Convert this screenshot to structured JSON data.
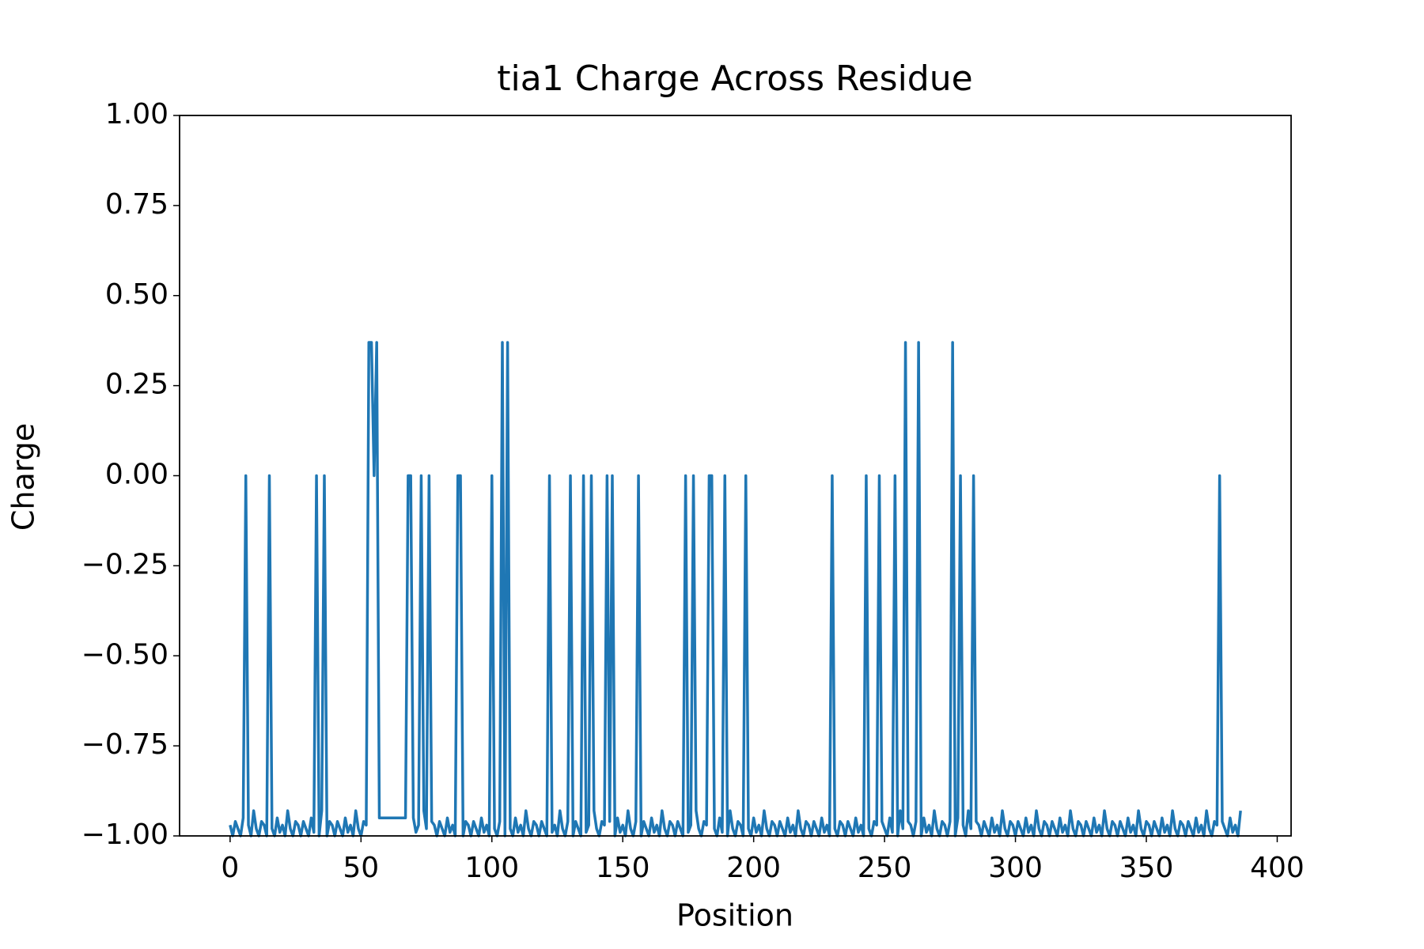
{
  "chart_data": {
    "type": "line",
    "title": "tia1 Charge Across Residue",
    "x_label": "Position",
    "y_label": "Charge",
    "xlim": [
      -19.3,
      405.3
    ],
    "xticks": [
      0,
      50,
      100,
      150,
      200,
      250,
      300,
      350,
      400
    ],
    "ylim": [
      -1,
      1
    ],
    "yticks": [
      {
        "value": -1,
        "label": "−1.00"
      },
      {
        "value": -0.75,
        "label": "−0.75"
      },
      {
        "value": -0.5,
        "label": "−0.50"
      },
      {
        "value": -0.25,
        "label": "−0.25"
      },
      {
        "value": 0,
        "label": "0.00"
      },
      {
        "value": 0.25,
        "label": "0.25"
      },
      {
        "value": 0.5,
        "label": "0.50"
      },
      {
        "value": 0.75,
        "label": "0.75"
      },
      {
        "value": 1,
        "label": "1.00"
      }
    ],
    "grid": false,
    "color": "#1f77b4",
    "x": [
      0,
      1,
      2,
      3,
      4,
      5,
      6,
      7,
      8,
      9,
      10,
      11,
      12,
      13,
      14,
      15,
      16,
      17,
      18,
      19,
      20,
      21,
      22,
      23,
      24,
      25,
      26,
      27,
      28,
      29,
      30,
      31,
      32,
      33,
      34,
      35,
      36,
      37,
      38,
      39,
      40,
      41,
      42,
      43,
      44,
      45,
      46,
      47,
      48,
      49,
      50,
      51,
      52,
      53,
      54,
      55,
      56,
      57,
      58,
      59,
      60,
      61,
      62,
      63,
      64,
      65,
      66,
      67,
      68,
      69,
      70,
      71,
      72,
      73,
      74,
      75,
      76,
      77,
      78,
      79,
      80,
      81,
      82,
      83,
      84,
      85,
      86,
      87,
      88,
      89,
      90,
      91,
      92,
      93,
      94,
      95,
      96,
      97,
      98,
      99,
      100,
      101,
      102,
      103,
      104,
      105,
      106,
      107,
      108,
      109,
      110,
      111,
      112,
      113,
      114,
      115,
      116,
      117,
      118,
      119,
      120,
      121,
      122,
      123,
      124,
      125,
      126,
      127,
      128,
      129,
      130,
      131,
      132,
      133,
      134,
      135,
      136,
      137,
      138,
      139,
      140,
      141,
      142,
      143,
      144,
      145,
      146,
      147,
      148,
      149,
      150,
      151,
      152,
      153,
      154,
      155,
      156,
      157,
      158,
      159,
      160,
      161,
      162,
      163,
      164,
      165,
      166,
      167,
      168,
      169,
      170,
      171,
      172,
      173,
      174,
      175,
      176,
      177,
      178,
      179,
      180,
      181,
      182,
      183,
      184,
      185,
      186,
      187,
      188,
      189,
      190,
      191,
      192,
      193,
      194,
      195,
      196,
      197,
      198,
      199,
      200,
      201,
      202,
      203,
      204,
      205,
      206,
      207,
      208,
      209,
      210,
      211,
      212,
      213,
      214,
      215,
      216,
      217,
      218,
      219,
      220,
      221,
      222,
      223,
      224,
      225,
      226,
      227,
      228,
      229,
      230,
      231,
      232,
      233,
      234,
      235,
      236,
      237,
      238,
      239,
      240,
      241,
      242,
      243,
      244,
      245,
      246,
      247,
      248,
      249,
      250,
      251,
      252,
      253,
      254,
      255,
      256,
      257,
      258,
      259,
      260,
      261,
      262,
      263,
      264,
      265,
      266,
      267,
      268,
      269,
      270,
      271,
      272,
      273,
      274,
      275,
      276,
      277,
      278,
      279,
      280,
      281,
      282,
      283,
      284,
      285,
      286,
      287,
      288,
      289,
      290,
      291,
      292,
      293,
      294,
      295,
      296,
      297,
      298,
      299,
      300,
      301,
      302,
      303,
      304,
      305,
      306,
      307,
      308,
      309,
      310,
      311,
      312,
      313,
      314,
      315,
      316,
      317,
      318,
      319,
      320,
      321,
      322,
      323,
      324,
      325,
      326,
      327,
      328,
      329,
      330,
      331,
      332,
      333,
      334,
      335,
      336,
      337,
      338,
      339,
      340,
      341,
      342,
      343,
      344,
      345,
      346,
      347,
      348,
      349,
      350,
      351,
      352,
      353,
      354,
      355,
      356,
      357,
      358,
      359,
      360,
      361,
      362,
      363,
      364,
      365,
      366,
      367,
      368,
      369,
      370,
      371,
      372,
      373,
      374,
      375,
      376,
      377,
      378,
      379,
      380,
      381,
      382,
      383,
      384,
      385,
      386
    ],
    "values": [
      -0.97,
      -1,
      -0.96,
      -0.98,
      -1,
      -0.95,
      0,
      -0.97,
      -1,
      -0.93,
      -0.98,
      -1,
      -0.96,
      -0.97,
      -1,
      0,
      -0.98,
      -1,
      -0.95,
      -0.99,
      -0.97,
      -1,
      -0.93,
      -0.98,
      -1,
      -0.96,
      -0.97,
      -1,
      -0.96,
      -0.98,
      -1,
      -0.95,
      -0.99,
      0,
      -1,
      -0.93,
      0,
      -1,
      -0.96,
      -0.97,
      -1,
      -0.96,
      -0.98,
      -1,
      -0.95,
      -0.99,
      -0.97,
      -1,
      -0.93,
      -0.98,
      -1,
      -0.96,
      -0.97,
      0.37,
      0.37,
      0,
      0.37,
      -0.95,
      -0.95,
      -0.95,
      -0.95,
      -0.95,
      -0.95,
      -0.95,
      -0.95,
      -0.95,
      -0.95,
      -0.95,
      0,
      0,
      -0.95,
      -0.99,
      -0.97,
      0,
      -0.93,
      -0.98,
      0,
      -0.96,
      -0.97,
      -1,
      -0.96,
      -0.98,
      -1,
      -0.95,
      -0.99,
      -0.97,
      -1,
      0,
      0,
      -1,
      -0.96,
      -0.97,
      -1,
      -0.96,
      -0.98,
      -1,
      -0.95,
      -0.99,
      -0.97,
      -1,
      0,
      -0.98,
      -1,
      -0.96,
      0.37,
      -1,
      0.37,
      -0.98,
      -1,
      -0.95,
      -0.99,
      -0.97,
      -1,
      -0.93,
      -0.98,
      -1,
      -0.96,
      -0.97,
      -1,
      -0.96,
      -0.98,
      -1,
      0,
      -0.99,
      -0.97,
      -1,
      -0.93,
      -0.98,
      -1,
      -0.96,
      0,
      -1,
      -0.96,
      -0.98,
      -1,
      0,
      -0.99,
      -0.97,
      0,
      -0.93,
      -0.98,
      -1,
      -0.96,
      -0.97,
      0,
      -0.96,
      0,
      -1,
      -0.95,
      -0.99,
      -0.97,
      -1,
      -0.93,
      -0.98,
      -1,
      -0.96,
      0,
      -1,
      -0.96,
      -0.98,
      -1,
      -0.95,
      -0.99,
      -0.97,
      -1,
      -0.93,
      -0.98,
      -1,
      -0.96,
      -0.97,
      -1,
      -0.96,
      -0.98,
      -1,
      0,
      -0.99,
      -0.97,
      0,
      -0.93,
      -0.98,
      -1,
      -0.96,
      -0.97,
      0,
      0,
      -0.98,
      -1,
      -0.95,
      -0.99,
      0,
      -1,
      -0.93,
      -0.98,
      -1,
      -0.96,
      -0.97,
      -1,
      0,
      -0.98,
      -1,
      -0.95,
      -0.99,
      -0.97,
      -1,
      -0.93,
      -0.98,
      -1,
      -0.96,
      -0.97,
      -1,
      -0.96,
      -0.98,
      -1,
      -0.95,
      -0.99,
      -0.97,
      -1,
      -0.93,
      -0.98,
      -1,
      -0.96,
      -0.97,
      -1,
      -0.96,
      -0.98,
      -1,
      -0.95,
      -0.99,
      -0.97,
      -1,
      0,
      -0.98,
      -1,
      -0.96,
      -0.97,
      -1,
      -0.96,
      -0.98,
      -1,
      -0.95,
      -0.99,
      -0.97,
      -1,
      0,
      -0.98,
      -1,
      -0.96,
      -0.97,
      0,
      -0.96,
      -0.98,
      -1,
      -0.95,
      -0.99,
      0,
      -1,
      -0.93,
      -0.98,
      0.37,
      -0.96,
      -0.97,
      -1,
      -0.96,
      0.37,
      -1,
      -0.95,
      -0.99,
      -0.97,
      -1,
      -0.93,
      -0.98,
      -1,
      -0.96,
      -0.97,
      -1,
      -0.96,
      0.37,
      -1,
      -0.95,
      0,
      -0.97,
      -1,
      -0.93,
      -0.98,
      0,
      -0.96,
      -0.97,
      -1,
      -0.96,
      -0.98,
      -1,
      -0.95,
      -0.99,
      -0.97,
      -1,
      -0.93,
      -0.98,
      -1,
      -0.96,
      -0.97,
      -1,
      -0.96,
      -0.98,
      -1,
      -0.95,
      -0.99,
      -0.97,
      -1,
      -0.93,
      -0.98,
      -1,
      -0.96,
      -0.97,
      -1,
      -0.96,
      -0.98,
      -1,
      -0.95,
      -0.99,
      -0.97,
      -1,
      -0.93,
      -0.98,
      -1,
      -0.96,
      -0.97,
      -1,
      -0.96,
      -0.98,
      -1,
      -0.95,
      -0.99,
      -0.97,
      -1,
      -0.93,
      -0.98,
      -1,
      -0.96,
      -0.97,
      -1,
      -0.96,
      -0.98,
      -1,
      -0.95,
      -0.99,
      -0.97,
      -1,
      -0.93,
      -0.98,
      -1,
      -0.96,
      -0.97,
      -1,
      -0.96,
      -0.98,
      -1,
      -0.95,
      -0.99,
      -0.97,
      -1,
      -0.93,
      -0.98,
      -1,
      -0.96,
      -0.97,
      -1,
      -0.96,
      -0.98,
      -1,
      -0.95,
      -0.99,
      -0.97,
      -1,
      -0.93,
      -0.98,
      -1,
      -0.96,
      -0.97,
      0,
      -0.96,
      -0.98,
      -1,
      -0.95,
      -0.99,
      -0.97,
      -1,
      -0.93
    ]
  }
}
